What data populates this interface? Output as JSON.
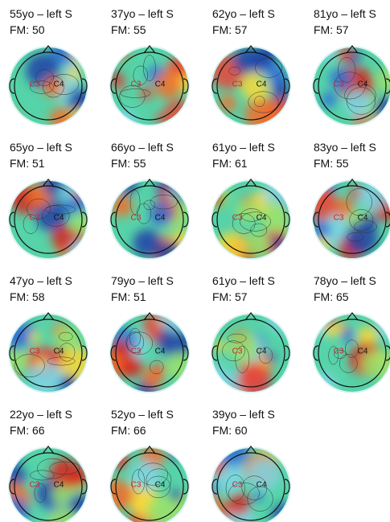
{
  "electrodes": [
    "C3",
    "C4"
  ],
  "panels": [
    {
      "title": "55yo – left S",
      "fm": "FM: 50"
    },
    {
      "title": "37yo – left S",
      "fm": "FM: 55"
    },
    {
      "title": "62yo – left S",
      "fm": "FM: 57"
    },
    {
      "title": "81yo – left S",
      "fm": "FM: 57"
    },
    {
      "title": "65yo – left S",
      "fm": "FM: 51"
    },
    {
      "title": "66yo – left S",
      "fm": "FM: 55"
    },
    {
      "title": "61yo – left S",
      "fm": "FM: 61"
    },
    {
      "title": "83yo – left S",
      "fm": "FM: 55"
    },
    {
      "title": "47yo – left S",
      "fm": "FM: 58"
    },
    {
      "title": "79yo – left S",
      "fm": "FM: 51"
    },
    {
      "title": "61yo – left S",
      "fm": "FM: 57"
    },
    {
      "title": "78yo – left S",
      "fm": "FM: 65"
    },
    {
      "title": "22yo – left S",
      "fm": "FM: 66"
    },
    {
      "title": "52yo – left S",
      "fm": "FM: 66"
    },
    {
      "title": "39yo – left S",
      "fm": "FM: 60"
    }
  ]
}
